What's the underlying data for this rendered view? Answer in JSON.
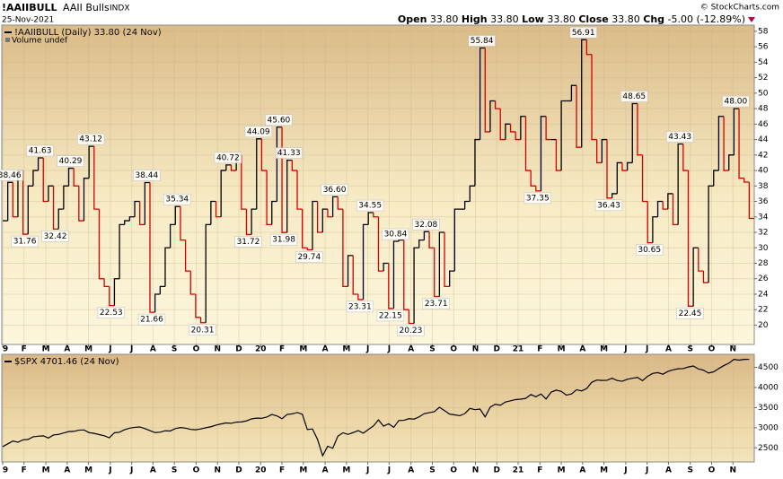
{
  "header": {
    "symbol": "!AAIIBULL",
    "name": "AAII Bulls",
    "exchange": "INDX",
    "date": "25-Nov-2021",
    "watermark": "© StockCharts.com",
    "quote": [
      {
        "label": "Open",
        "value": "33.80"
      },
      {
        "label": "High",
        "value": "33.80"
      },
      {
        "label": "Low",
        "value": "33.80"
      },
      {
        "label": "Close",
        "value": "33.80"
      },
      {
        "label": "Chg",
        "value": "-5.00 (-12.89%)"
      }
    ]
  },
  "chart_data": [
    {
      "type": "step",
      "title": "!AAIIBULL (Daily) 33.80 (24 Nov)",
      "volume_label": "Volume undef",
      "up_color": "#000000",
      "down_color": "#d40000",
      "grid": true,
      "xlim": [
        0,
        148
      ],
      "ylim": [
        17.5,
        58.8
      ],
      "yticks": [
        20,
        22,
        24,
        26,
        28,
        30,
        32,
        34,
        36,
        38,
        40,
        42,
        44,
        46,
        48,
        50,
        52,
        54,
        56,
        58
      ],
      "xticks": [
        {
          "value": 0,
          "label": "9"
        },
        {
          "value": 4.2,
          "label": "F"
        },
        {
          "value": 8.5,
          "label": "M"
        },
        {
          "value": 12.7,
          "label": "A"
        },
        {
          "value": 16.9,
          "label": "M"
        },
        {
          "value": 21.2,
          "label": "J"
        },
        {
          "value": 25.4,
          "label": "J"
        },
        {
          "value": 29.6,
          "label": "A"
        },
        {
          "value": 33.8,
          "label": "S"
        },
        {
          "value": 38.1,
          "label": "O"
        },
        {
          "value": 42.3,
          "label": "N"
        },
        {
          "value": 46.5,
          "label": "D"
        },
        {
          "value": 50.8,
          "label": "20"
        },
        {
          "value": 55,
          "label": "F"
        },
        {
          "value": 59.2,
          "label": "M"
        },
        {
          "value": 63.5,
          "label": "A"
        },
        {
          "value": 67.7,
          "label": "M"
        },
        {
          "value": 71.9,
          "label": "J"
        },
        {
          "value": 76.1,
          "label": "J"
        },
        {
          "value": 80.4,
          "label": "A"
        },
        {
          "value": 84.6,
          "label": "S"
        },
        {
          "value": 88.8,
          "label": "O"
        },
        {
          "value": 93.1,
          "label": "N"
        },
        {
          "value": 97.3,
          "label": "D"
        },
        {
          "value": 101.5,
          "label": "21"
        },
        {
          "value": 105.8,
          "label": "F"
        },
        {
          "value": 110,
          "label": "M"
        },
        {
          "value": 114.2,
          "label": "A"
        },
        {
          "value": 118.4,
          "label": "M"
        },
        {
          "value": 122.7,
          "label": "J"
        },
        {
          "value": 126.9,
          "label": "J"
        },
        {
          "value": 131.1,
          "label": "A"
        },
        {
          "value": 135.4,
          "label": "S"
        },
        {
          "value": 139.6,
          "label": "O"
        },
        {
          "value": 143.8,
          "label": "N"
        }
      ],
      "values": [
        33.5,
        38.46,
        34,
        40,
        31.76,
        38,
        40,
        41.63,
        36,
        38,
        32.42,
        35,
        38,
        40.29,
        38,
        33.5,
        39,
        43.12,
        35,
        26,
        25,
        22.53,
        26,
        33,
        33.5,
        34,
        36,
        33,
        38.44,
        21.66,
        24,
        25,
        30,
        33,
        35.34,
        31,
        27,
        24,
        21,
        20.31,
        33,
        36,
        34,
        40,
        40.72,
        40,
        42,
        35,
        31.72,
        35,
        44.09,
        40,
        33,
        36,
        45.6,
        31.98,
        41.33,
        40,
        35,
        30,
        29.74,
        36,
        32,
        35,
        34,
        36.6,
        35,
        25,
        29,
        24,
        23.31,
        33,
        34.55,
        34,
        27,
        28,
        22.15,
        30.84,
        31,
        22,
        20.23,
        30,
        31,
        32.08,
        30,
        23.71,
        32,
        25,
        27,
        35,
        35,
        36,
        38,
        44,
        55.84,
        45,
        49,
        48,
        44,
        46,
        45,
        44,
        47,
        40,
        38,
        37.35,
        47,
        44,
        44,
        40,
        49,
        49,
        51,
        43,
        56.91,
        55,
        44,
        41,
        44,
        36.43,
        37,
        41,
        40,
        41,
        48.65,
        42,
        36,
        30.65,
        34,
        36,
        35,
        37,
        33,
        43.43,
        40,
        22.45,
        30,
        27,
        25.5,
        38,
        40,
        47,
        40,
        42,
        48,
        39,
        38.5,
        33.8
      ],
      "value_labels": [
        null,
        "38.46",
        null,
        null,
        "31.76",
        null,
        null,
        "41.63",
        null,
        null,
        "32.42",
        null,
        null,
        "40.29",
        null,
        null,
        null,
        "43.12",
        null,
        null,
        null,
        "22.53",
        null,
        null,
        null,
        null,
        null,
        null,
        "38.44",
        "21.66",
        null,
        null,
        null,
        null,
        "35.34",
        null,
        null,
        null,
        null,
        "20.31",
        null,
        null,
        null,
        null,
        "40.72",
        null,
        null,
        null,
        "31.72",
        null,
        "44.09",
        null,
        null,
        null,
        "45.60",
        "31.98",
        "41.33",
        null,
        null,
        null,
        "29.74",
        null,
        null,
        null,
        null,
        "36.60",
        null,
        null,
        null,
        null,
        "23.31",
        null,
        "34.55",
        null,
        null,
        null,
        "22.15",
        "30.84",
        null,
        null,
        "20.23",
        null,
        null,
        "32.08",
        null,
        "23.71",
        null,
        null,
        null,
        null,
        null,
        null,
        null,
        null,
        "55.84",
        null,
        null,
        null,
        null,
        null,
        null,
        null,
        null,
        null,
        null,
        "37.35",
        null,
        null,
        null,
        null,
        null,
        null,
        null,
        null,
        "56.91",
        null,
        null,
        null,
        null,
        "36.43",
        null,
        null,
        null,
        null,
        "48.65",
        null,
        null,
        "30.65",
        null,
        null,
        null,
        null,
        null,
        "43.43",
        null,
        "22.45",
        null,
        null,
        null,
        null,
        null,
        null,
        null,
        null,
        "48.00",
        null,
        null,
        null
      ]
    },
    {
      "type": "line",
      "title": "$SPX 4701.46 (24 Nov)",
      "color": "#000000",
      "grid": true,
      "xlim": [
        0,
        148
      ],
      "ylim": [
        2150,
        4825
      ],
      "yticks": [
        2500,
        3000,
        3500,
        4000,
        4500
      ],
      "xticks": [
        {
          "value": 0,
          "label": "9"
        },
        {
          "value": 4.2,
          "label": "F"
        },
        {
          "value": 8.5,
          "label": "M"
        },
        {
          "value": 12.7,
          "label": "A"
        },
        {
          "value": 16.9,
          "label": "M"
        },
        {
          "value": 21.2,
          "label": "J"
        },
        {
          "value": 25.4,
          "label": "J"
        },
        {
          "value": 29.6,
          "label": "A"
        },
        {
          "value": 33.8,
          "label": "S"
        },
        {
          "value": 38.1,
          "label": "O"
        },
        {
          "value": 42.3,
          "label": "N"
        },
        {
          "value": 46.5,
          "label": "D"
        },
        {
          "value": 50.8,
          "label": "20"
        },
        {
          "value": 55,
          "label": "F"
        },
        {
          "value": 59.2,
          "label": "M"
        },
        {
          "value": 63.5,
          "label": "A"
        },
        {
          "value": 67.7,
          "label": "M"
        },
        {
          "value": 71.9,
          "label": "J"
        },
        {
          "value": 76.1,
          "label": "J"
        },
        {
          "value": 80.4,
          "label": "A"
        },
        {
          "value": 84.6,
          "label": "S"
        },
        {
          "value": 88.8,
          "label": "O"
        },
        {
          "value": 93.1,
          "label": "N"
        },
        {
          "value": 97.3,
          "label": "D"
        },
        {
          "value": 101.5,
          "label": "21"
        },
        {
          "value": 105.8,
          "label": "F"
        },
        {
          "value": 110,
          "label": "M"
        },
        {
          "value": 114.2,
          "label": "A"
        },
        {
          "value": 118.4,
          "label": "M"
        },
        {
          "value": 122.7,
          "label": "J"
        },
        {
          "value": 126.9,
          "label": "J"
        },
        {
          "value": 131.1,
          "label": "A"
        },
        {
          "value": 135.4,
          "label": "S"
        },
        {
          "value": 139.6,
          "label": "O"
        },
        {
          "value": 143.8,
          "label": "N"
        }
      ],
      "values": [
        2530,
        2600,
        2670,
        2640,
        2700,
        2710,
        2775,
        2790,
        2800,
        2745,
        2820,
        2835,
        2870,
        2905,
        2910,
        2940,
        2945,
        2880,
        2860,
        2830,
        2800,
        2750,
        2875,
        2890,
        2950,
        2990,
        3010,
        3020,
        2980,
        2930,
        2880,
        2890,
        2925,
        2920,
        2980,
        3005,
        2990,
        2960,
        2950,
        2970,
        3000,
        3025,
        3065,
        3095,
        3120,
        3110,
        3140,
        3145,
        3170,
        3220,
        3240,
        3235,
        3265,
        3330,
        3295,
        3225,
        3330,
        3345,
        3380,
        3335,
        2955,
        2970,
        2710,
        2305,
        2540,
        2490,
        2790,
        2875,
        2835,
        2880,
        2930,
        2865,
        2955,
        3045,
        3195,
        3040,
        3100,
        3010,
        3180,
        3185,
        3225,
        3215,
        3270,
        3350,
        3375,
        3400,
        3510,
        3425,
        3340,
        3320,
        3300,
        3350,
        3480,
        3450,
        3465,
        3270,
        3510,
        3585,
        3560,
        3640,
        3670,
        3700,
        3710,
        3730,
        3825,
        3770,
        3840,
        3715,
        3885,
        3935,
        3905,
        3810,
        3840,
        3945,
        3915,
        3975,
        4130,
        4185,
        4175,
        4180,
        4230,
        4175,
        4155,
        4205,
        4230,
        4250,
        4170,
        4280,
        4350,
        4370,
        4330,
        4400,
        4440,
        4465,
        4470,
        4510,
        4535,
        4460,
        4430,
        4360,
        4390,
        4470,
        4545,
        4605,
        4700,
        4680,
        4700,
        4701.46
      ]
    }
  ]
}
